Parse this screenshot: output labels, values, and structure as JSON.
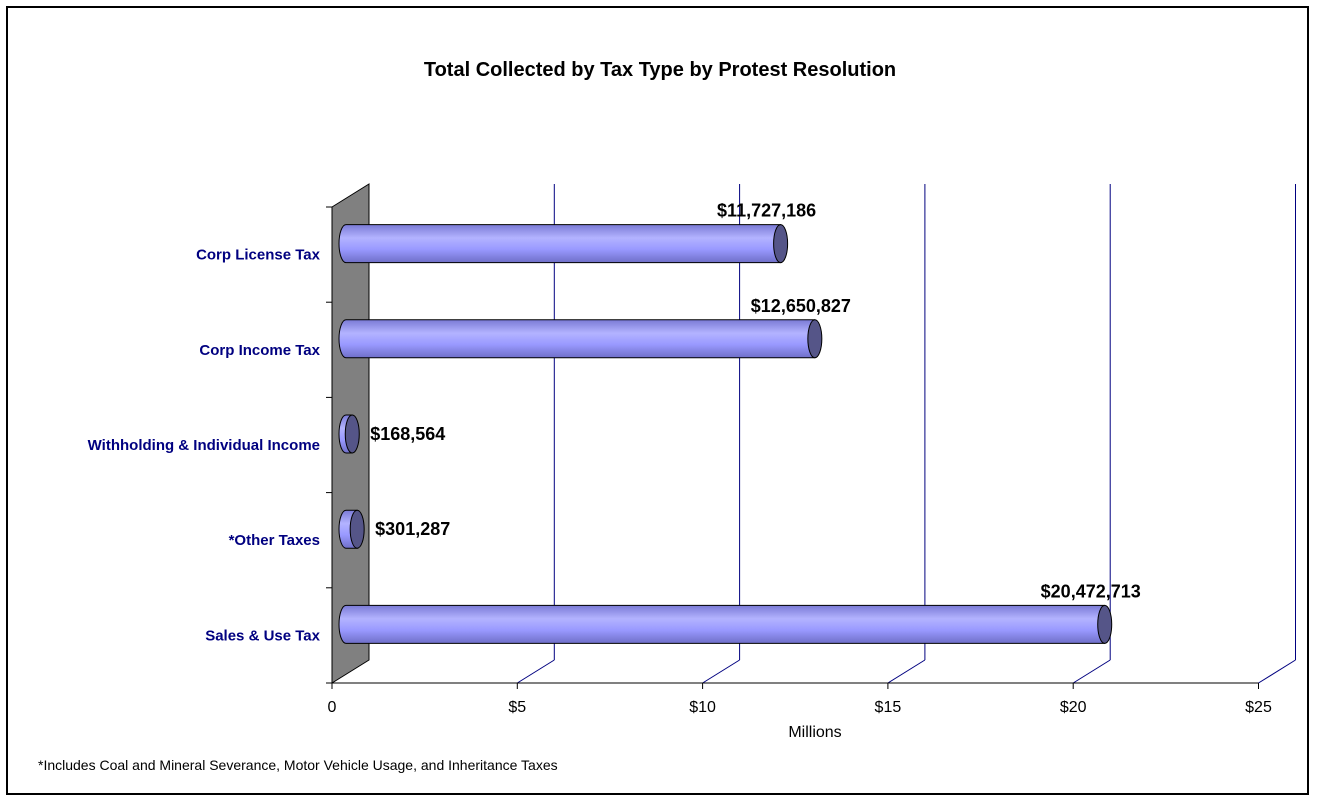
{
  "chart_data": {
    "type": "bar",
    "orientation": "horizontal",
    "title": "Total Collected by Tax Type by Protest Resolution",
    "xlabel": "Millions",
    "ylabel": "",
    "categories": [
      "Corp License Tax",
      "Corp Income Tax",
      "Withholding & Individual Income",
      "*Other Taxes",
      "Sales & Use Tax"
    ],
    "values": [
      11727186,
      12650827,
      168564,
      301287,
      20472713
    ],
    "value_labels": [
      "$11,727,186",
      "$12,650,827",
      "$168,564",
      "$301,287",
      "$20,472,713"
    ],
    "xlim": [
      0,
      25
    ],
    "xticks": [
      0,
      5,
      10,
      15,
      20,
      25
    ],
    "xtick_labels": [
      "0",
      "$5",
      "$10",
      "$15",
      "$20",
      "$25"
    ],
    "grid": true,
    "style": "3d-cylinder",
    "colors": {
      "bar": "#9999ff",
      "bar_end": "#555588",
      "wall": "#808080",
      "gridline": "#000080"
    }
  },
  "footnote": "*Includes Coal and Mineral Severance, Motor Vehicle Usage, and Inheritance Taxes"
}
